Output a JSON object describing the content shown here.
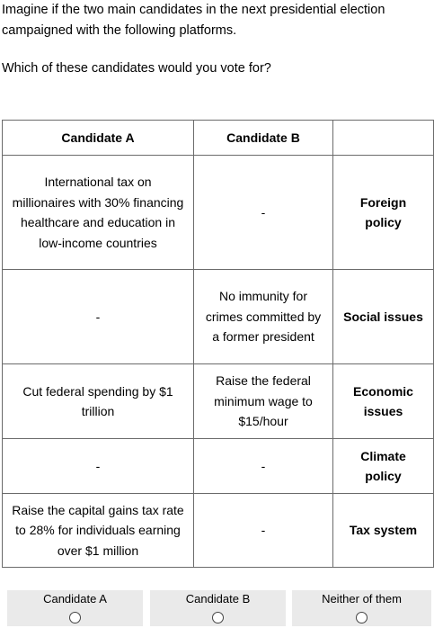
{
  "intro": "Imagine if the two main candidates in the next presidential election campaigned with the following platforms.",
  "question": "Which of these candidates would you vote for?",
  "table": {
    "headers": [
      "Candidate A",
      "Candidate B",
      ""
    ],
    "rows": [
      {
        "a": "International tax on millionaires with 30% financing healthcare and education in low-income countries",
        "b": "-",
        "attr": "Foreign policy"
      },
      {
        "a": "-",
        "b": "No immunity for crimes committed by a former president",
        "attr": "Social issues"
      },
      {
        "a": "Cut federal spending by $1 trillion",
        "b": "Raise the federal minimum wage to $15/hour",
        "attr": "Economic issues"
      },
      {
        "a": "-",
        "b": "-",
        "attr": "Climate policy"
      },
      {
        "a": "Raise the capital gains tax rate to 28% for individuals earning over $1 million",
        "b": "-",
        "attr": "Tax system"
      }
    ]
  },
  "choices": [
    {
      "label": "Candidate A",
      "selected": false
    },
    {
      "label": "Candidate B",
      "selected": false
    },
    {
      "label": "Neither of them",
      "selected": false
    }
  ]
}
